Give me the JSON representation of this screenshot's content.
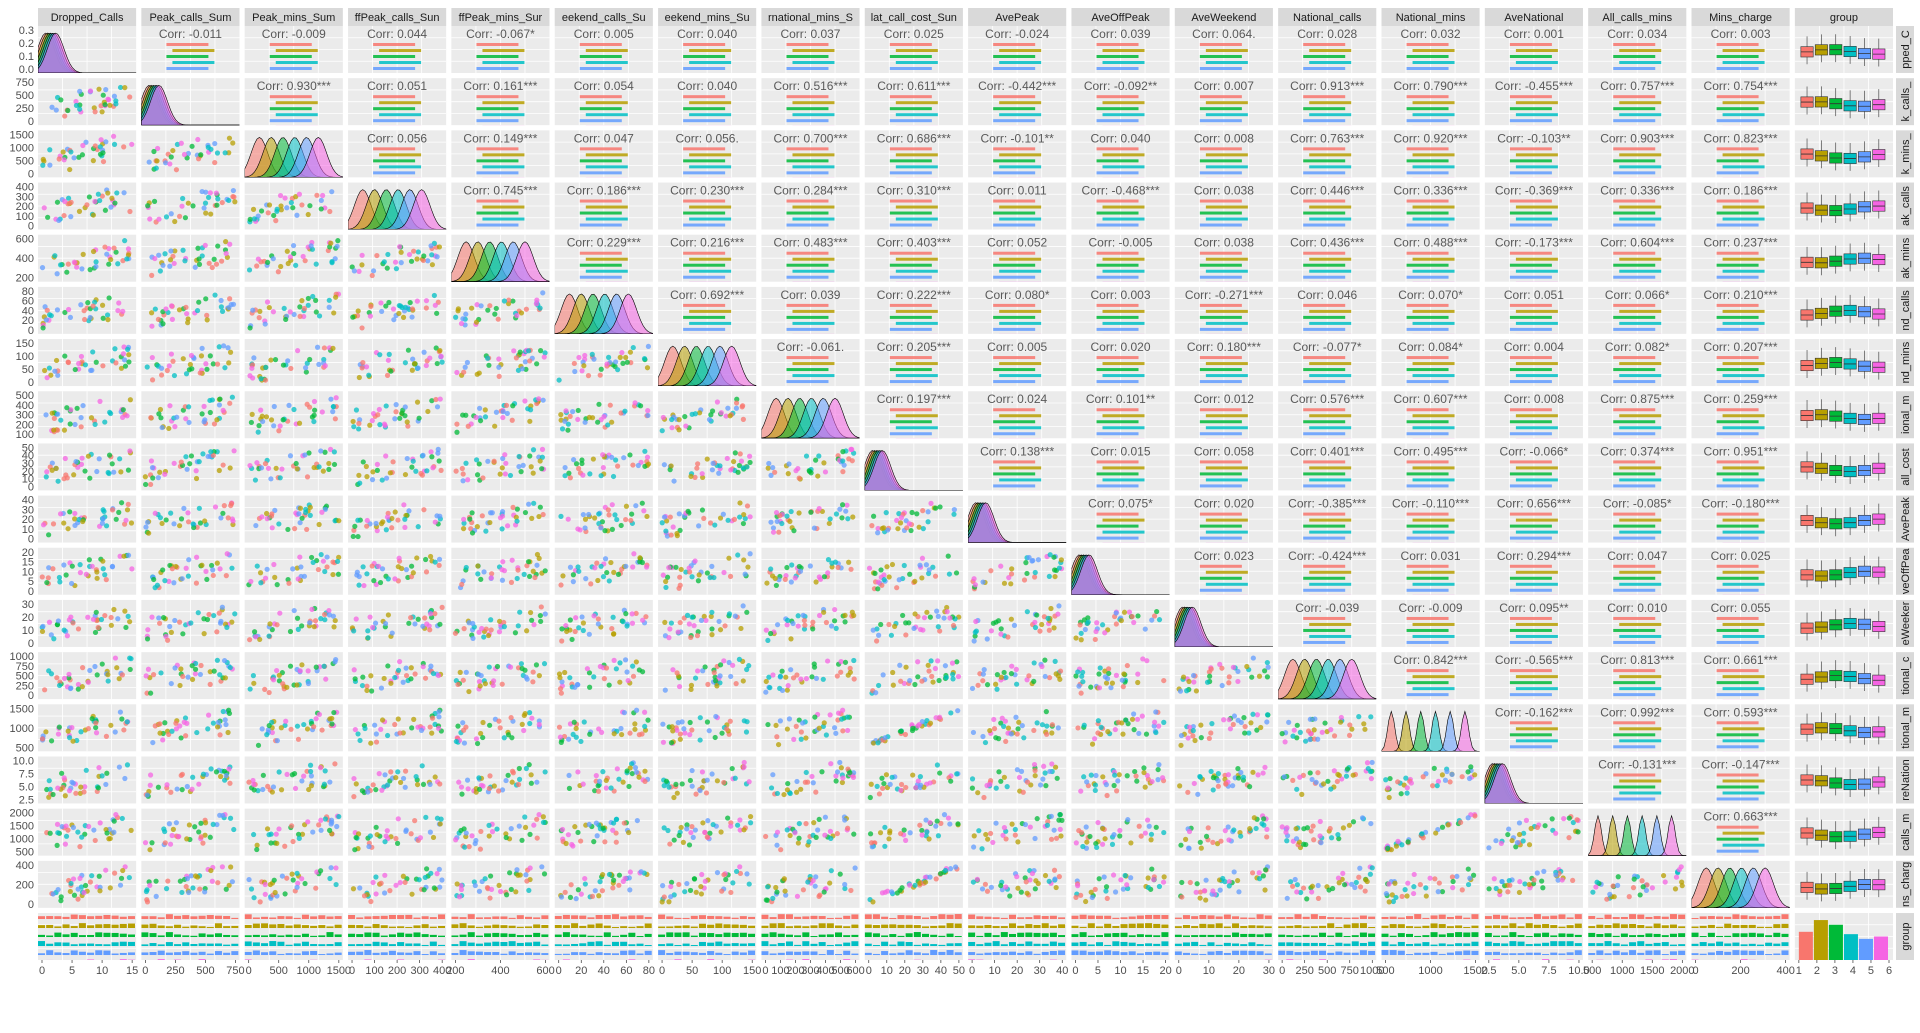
{
  "chart_data": {
    "type": "pairs-matrix",
    "variables": [
      "Dropped_Calls",
      "Peak_calls_Sum",
      "Peak_mins_Sum",
      "OffPeak_calls_Sum",
      "OffPeak_mins_Sum",
      "Weekend_calls_Sum",
      "Weekend_mins_Sum",
      "International_mins_Sum",
      "Nat_call_cost_Sum",
      "AvePeak",
      "AveOffPeak",
      "AveWeekend",
      "National_calls",
      "National_mins",
      "AveNational",
      "All_calls_mins",
      "Mins_charge",
      "group"
    ],
    "col_strip_labels": [
      "Dropped_Calls",
      "Peak_calls_Sum",
      "Peak_mins_Sum",
      "ffPeak_calls_Sun",
      "ffPeak_mins_Sur",
      "eekend_calls_Su",
      "eekend_mins_Su",
      "rnational_mins_S",
      "lat_call_cost_Sun",
      "AvePeak",
      "AveOffPeak",
      "AveWeekend",
      "National_calls",
      "National_mins",
      "AveNational",
      "All_calls_mins",
      "Mins_charge",
      "group"
    ],
    "row_strip_labels": [
      "pped_C",
      "k_calls_",
      "k_mins_",
      "ak_calls",
      "ak_mins",
      "nd_calls",
      "nd_mins",
      "ional_m",
      "all_cost",
      "AvePeak",
      "veOffPea",
      "eWeeker",
      "tional_c",
      "tional_m",
      "reNation",
      "calls_m",
      "ns_charg",
      "group"
    ],
    "groups": [
      "1",
      "2",
      "3",
      "4",
      "5",
      "6"
    ],
    "group_colors": [
      "#F8766D",
      "#B79F00",
      "#00BA38",
      "#00BFC4",
      "#619CFF",
      "#F564E3"
    ],
    "x_ticks": [
      [
        "0",
        "5",
        "10",
        "15"
      ],
      [
        "0",
        "250",
        "500",
        "750"
      ],
      [
        "0",
        "500",
        "1000",
        "1500"
      ],
      [
        "0",
        "100",
        "200",
        "300",
        "400"
      ],
      [
        "200",
        "400",
        "600"
      ],
      [
        "0",
        "20",
        "40",
        "60",
        "80"
      ],
      [
        "0",
        "50",
        "100",
        "150"
      ],
      [
        "0",
        "100",
        "200",
        "300",
        "400",
        "500",
        "600"
      ],
      [
        "0",
        "10",
        "20",
        "30",
        "40",
        "50"
      ],
      [
        "0",
        "10",
        "20",
        "30",
        "40"
      ],
      [
        "0",
        "5",
        "10",
        "15",
        "20"
      ],
      [
        "0",
        "10",
        "20",
        "30"
      ],
      [
        "0",
        "250",
        "500",
        "750",
        "1000"
      ],
      [
        "500",
        "1000",
        "1500"
      ],
      [
        "2.5",
        "5.0",
        "7.5",
        "10.0"
      ],
      [
        "500",
        "1000",
        "1500",
        "2000"
      ],
      [
        "0",
        "200",
        "400"
      ],
      [
        "1",
        "2",
        "3",
        "4",
        "5",
        "6"
      ]
    ],
    "y_ticks": [
      [
        "0.0",
        "0.1",
        "0.2",
        "0.3"
      ],
      [
        "0",
        "250",
        "500",
        "750"
      ],
      [
        "0",
        "500",
        "1000",
        "1500"
      ],
      [
        "0",
        "100",
        "200",
        "300",
        "400"
      ],
      [
        "200",
        "400",
        "600"
      ],
      [
        "0",
        "20",
        "40",
        "60",
        "80"
      ],
      [
        "0",
        "50",
        "100",
        "150"
      ],
      [
        "100",
        "200",
        "300",
        "400",
        "500"
      ],
      [
        "0",
        "10",
        "20",
        "30",
        "40",
        "50"
      ],
      [
        "0",
        "10",
        "20",
        "30",
        "40"
      ],
      [
        "0",
        "5",
        "10",
        "15",
        "20"
      ],
      [
        "0",
        "10",
        "20",
        "30"
      ],
      [
        "0",
        "250",
        "500",
        "750",
        "1000"
      ],
      [
        "500",
        "1000",
        "1500"
      ],
      [
        "2.5",
        "5.0",
        "7.5",
        "10.0"
      ],
      [
        "500",
        "1000",
        "1500",
        "2000"
      ],
      [
        "0",
        "200",
        "400"
      ],
      []
    ],
    "correlations": {
      "0": {
        "1": "-0.011",
        "2": "-0.009",
        "3": "0.044",
        "4": "-0.067*",
        "5": "0.005",
        "6": "0.040",
        "7": "0.037",
        "8": "0.025",
        "9": "-0.024",
        "10": "0.039",
        "11": "0.064.",
        "12": "0.028",
        "13": "0.032",
        "14": "0.001",
        "15": "0.034",
        "16": "0.003"
      },
      "1": {
        "2": "0.930***",
        "3": "0.051",
        "4": "0.161***",
        "5": "0.054",
        "6": "0.040",
        "7": "0.516***",
        "8": "0.611***",
        "9": "-0.442***",
        "10": "-0.092**",
        "11": "0.007",
        "12": "0.913***",
        "13": "0.790***",
        "14": "-0.455***",
        "15": "0.757***",
        "16": "0.754***"
      },
      "2": {
        "3": "0.056",
        "4": "0.149***",
        "5": "0.047",
        "6": "0.056.",
        "7": "0.700***",
        "8": "0.686***",
        "9": "-0.101**",
        "10": "0.040",
        "11": "0.008",
        "12": "0.763***",
        "13": "0.920***",
        "14": "-0.103**",
        "15": "0.903***",
        "16": "0.823***"
      },
      "3": {
        "4": "0.745***",
        "5": "0.186***",
        "6": "0.230***",
        "7": "0.284***",
        "8": "0.310***",
        "9": "0.011",
        "10": "-0.468***",
        "11": "0.038",
        "12": "0.446***",
        "13": "0.336***",
        "14": "-0.369***",
        "15": "0.336***",
        "16": "0.186***"
      },
      "4": {
        "5": "0.229***",
        "6": "0.216***",
        "7": "0.483***",
        "8": "0.403***",
        "9": "0.052",
        "10": "-0.005",
        "11": "0.038",
        "12": "0.436***",
        "13": "0.488***",
        "14": "-0.173***",
        "15": "0.604***",
        "16": "0.237***"
      },
      "5": {
        "6": "0.692***",
        "7": "0.039",
        "8": "0.222***",
        "9": "0.080*",
        "10": "0.003",
        "11": "-0.271***",
        "12": "0.046",
        "13": "0.070*",
        "14": "0.051",
        "15": "0.066*",
        "16": "0.210***"
      },
      "6": {
        "7": "-0.061.",
        "8": "0.205***",
        "9": "0.005",
        "10": "0.020",
        "11": "0.180***",
        "12": "-0.077*",
        "13": "0.084*",
        "14": "0.004",
        "15": "0.082*",
        "16": "0.207***"
      },
      "7": {
        "8": "0.197***",
        "9": "0.024",
        "10": "0.101**",
        "11": "0.012",
        "12": "0.576***",
        "13": "0.607***",
        "14": "0.008",
        "15": "0.875***",
        "16": "0.259***"
      },
      "8": {
        "9": "0.138***",
        "10": "0.015",
        "11": "0.058",
        "12": "0.401***",
        "13": "0.495***",
        "14": "-0.066*",
        "15": "0.374***",
        "16": "0.951***"
      },
      "9": {
        "10": "0.075*",
        "11": "0.020",
        "12": "-0.385***",
        "13": "-0.110***",
        "14": "0.656***",
        "15": "-0.085*",
        "16": "-0.180***"
      },
      "10": {
        "11": "0.023",
        "12": "-0.424***",
        "13": "0.031",
        "14": "0.294***",
        "15": "0.047",
        "16": "0.025"
      },
      "11": {
        "12": "-0.039",
        "13": "-0.009",
        "14": "0.095**",
        "15": "0.010",
        "16": "0.055"
      },
      "12": {
        "13": "0.842***",
        "14": "-0.565***",
        "15": "0.813***",
        "16": "0.661***"
      },
      "13": {
        "14": "-0.162***",
        "15": "0.992***",
        "16": "0.593***"
      },
      "14": {
        "15": "-0.131***",
        "16": "-0.147***"
      },
      "15": {
        "16": "0.663***"
      }
    }
  }
}
